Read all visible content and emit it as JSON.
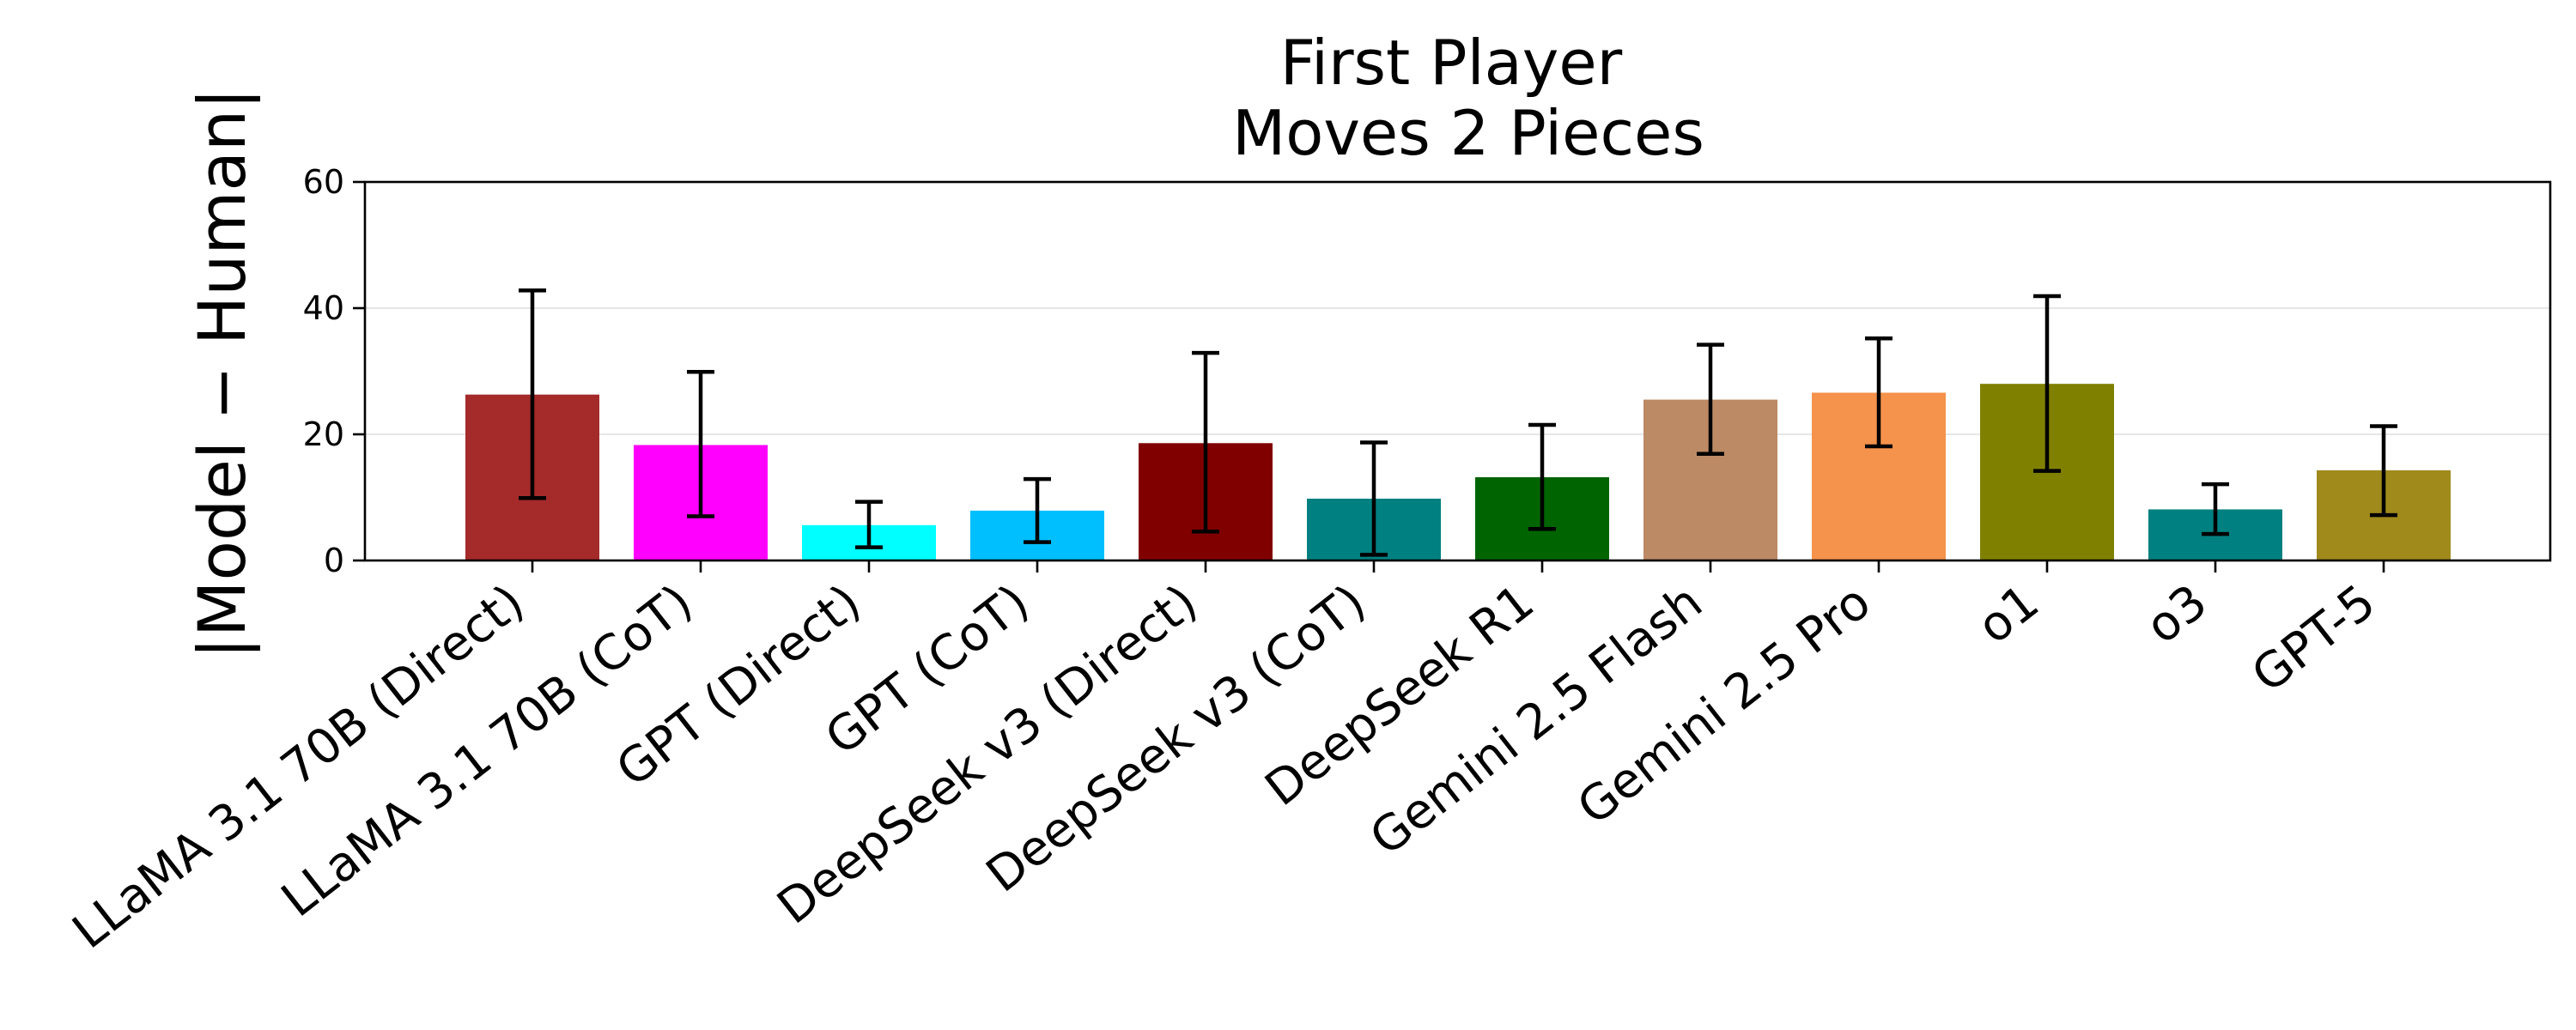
{
  "chart_data": {
    "type": "bar",
    "title_line1": "First Player",
    "title_line2": "Moves 2 Pieces",
    "xlabel": "",
    "ylabel": "|Model − Human|",
    "ylim": [
      0,
      60
    ],
    "yticks": [
      "0",
      "20",
      "40",
      "60"
    ],
    "grid": "horizontal, light",
    "categories": [
      "LLaMA 3.1 70B (Direct)",
      "LLaMA 3.1 70B (CoT)",
      "GPT (Direct)",
      "GPT (CoT)",
      "DeepSeek v3 (Direct)",
      "DeepSeek v3 (CoT)",
      "DeepSeek R1",
      "Gemini 2.5 Flash",
      "Gemini 2.5 Pro",
      "o1",
      "o3",
      "GPT-5"
    ],
    "values": [
      26.3,
      18.3,
      5.6,
      7.9,
      18.6,
      9.8,
      13.2,
      25.5,
      26.6,
      28.0,
      8.1,
      14.3
    ],
    "error_low": [
      9.9,
      7.0,
      2.1,
      2.9,
      4.6,
      0.9,
      5.0,
      16.9,
      18.1,
      14.2,
      4.2,
      7.2
    ],
    "error_high": [
      42.8,
      29.9,
      9.3,
      12.9,
      32.9,
      18.7,
      21.5,
      34.2,
      35.2,
      41.9,
      12.1,
      21.3
    ],
    "colors": [
      "#a52a2a",
      "#ff00ff",
      "#00ffff",
      "#00bfff",
      "#800000",
      "#008080",
      "#006400",
      "#bc8a65",
      "#f5924b",
      "#808000",
      "#008080",
      "#a08a1c"
    ]
  }
}
